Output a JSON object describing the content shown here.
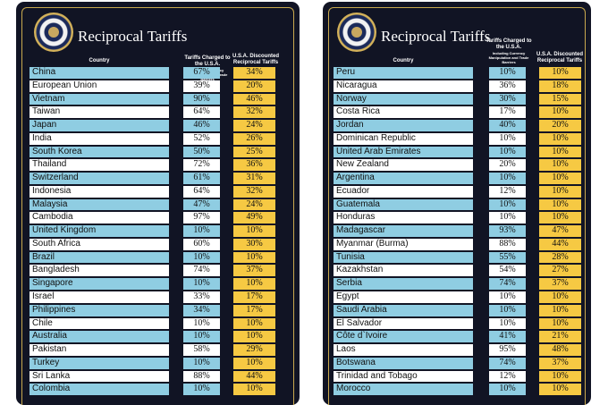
{
  "title": "Reciprocal Tariffs",
  "headers": {
    "country": "Country",
    "charged": "Tariffs Charged to the U.S.A.",
    "charged_sub": "Including Currency Manipulation and Trade Barriers",
    "discounted": "U.S.A. Discounted Reciprocal Tariffs"
  },
  "left": [
    {
      "country": "China",
      "charged": "67%",
      "discounted": "34%"
    },
    {
      "country": "European Union",
      "charged": "39%",
      "discounted": "20%"
    },
    {
      "country": "Vietnam",
      "charged": "90%",
      "discounted": "46%"
    },
    {
      "country": "Taiwan",
      "charged": "64%",
      "discounted": "32%"
    },
    {
      "country": "Japan",
      "charged": "46%",
      "discounted": "24%"
    },
    {
      "country": "India",
      "charged": "52%",
      "discounted": "26%"
    },
    {
      "country": "South Korea",
      "charged": "50%",
      "discounted": "25%"
    },
    {
      "country": "Thailand",
      "charged": "72%",
      "discounted": "36%"
    },
    {
      "country": "Switzerland",
      "charged": "61%",
      "discounted": "31%"
    },
    {
      "country": "Indonesia",
      "charged": "64%",
      "discounted": "32%"
    },
    {
      "country": "Malaysia",
      "charged": "47%",
      "discounted": "24%"
    },
    {
      "country": "Cambodia",
      "charged": "97%",
      "discounted": "49%"
    },
    {
      "country": "United Kingdom",
      "charged": "10%",
      "discounted": "10%"
    },
    {
      "country": "South Africa",
      "charged": "60%",
      "discounted": "30%"
    },
    {
      "country": "Brazil",
      "charged": "10%",
      "discounted": "10%"
    },
    {
      "country": "Bangladesh",
      "charged": "74%",
      "discounted": "37%"
    },
    {
      "country": "Singapore",
      "charged": "10%",
      "discounted": "10%"
    },
    {
      "country": "Israel",
      "charged": "33%",
      "discounted": "17%"
    },
    {
      "country": "Philippines",
      "charged": "34%",
      "discounted": "17%"
    },
    {
      "country": "Chile",
      "charged": "10%",
      "discounted": "10%"
    },
    {
      "country": "Australia",
      "charged": "10%",
      "discounted": "10%"
    },
    {
      "country": "Pakistan",
      "charged": "58%",
      "discounted": "29%"
    },
    {
      "country": "Turkey",
      "charged": "10%",
      "discounted": "10%"
    },
    {
      "country": "Sri Lanka",
      "charged": "88%",
      "discounted": "44%"
    },
    {
      "country": "Colombia",
      "charged": "10%",
      "discounted": "10%"
    }
  ],
  "right": [
    {
      "country": "Peru",
      "charged": "10%",
      "discounted": "10%"
    },
    {
      "country": "Nicaragua",
      "charged": "36%",
      "discounted": "18%"
    },
    {
      "country": "Norway",
      "charged": "30%",
      "discounted": "15%"
    },
    {
      "country": "Costa Rica",
      "charged": "17%",
      "discounted": "10%"
    },
    {
      "country": "Jordan",
      "charged": "40%",
      "discounted": "20%"
    },
    {
      "country": "Dominican Republic",
      "charged": "10%",
      "discounted": "10%"
    },
    {
      "country": "United Arab Emirates",
      "charged": "10%",
      "discounted": "10%"
    },
    {
      "country": "New Zealand",
      "charged": "20%",
      "discounted": "10%"
    },
    {
      "country": "Argentina",
      "charged": "10%",
      "discounted": "10%"
    },
    {
      "country": "Ecuador",
      "charged": "12%",
      "discounted": "10%"
    },
    {
      "country": "Guatemala",
      "charged": "10%",
      "discounted": "10%"
    },
    {
      "country": "Honduras",
      "charged": "10%",
      "discounted": "10%"
    },
    {
      "country": "Madagascar",
      "charged": "93%",
      "discounted": "47%"
    },
    {
      "country": "Myanmar (Burma)",
      "charged": "88%",
      "discounted": "44%"
    },
    {
      "country": "Tunisia",
      "charged": "55%",
      "discounted": "28%"
    },
    {
      "country": "Kazakhstan",
      "charged": "54%",
      "discounted": "27%"
    },
    {
      "country": "Serbia",
      "charged": "74%",
      "discounted": "37%"
    },
    {
      "country": "Egypt",
      "charged": "10%",
      "discounted": "10%"
    },
    {
      "country": "Saudi Arabia",
      "charged": "10%",
      "discounted": "10%"
    },
    {
      "country": "El Salvador",
      "charged": "10%",
      "discounted": "10%"
    },
    {
      "country": "Côte d`Ivoire",
      "charged": "41%",
      "discounted": "21%"
    },
    {
      "country": "Laos",
      "charged": "95%",
      "discounted": "48%"
    },
    {
      "country": "Botswana",
      "charged": "74%",
      "discounted": "37%"
    },
    {
      "country": "Trinidad and Tobago",
      "charged": "12%",
      "discounted": "10%"
    },
    {
      "country": "Morocco",
      "charged": "10%",
      "discounted": "10%"
    }
  ]
}
